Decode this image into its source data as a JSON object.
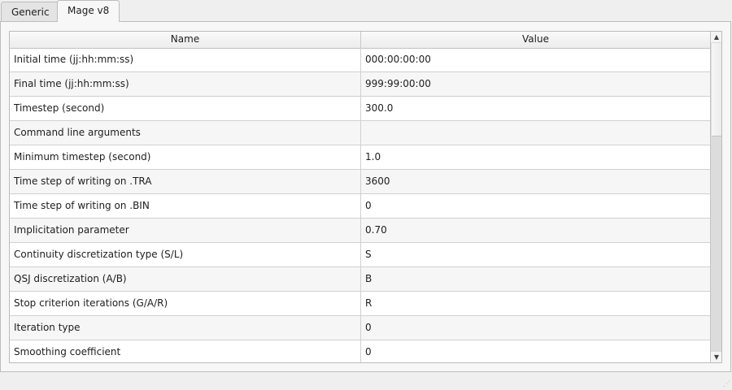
{
  "tabs": [
    {
      "label": "Generic",
      "active": false
    },
    {
      "label": "Mage v8",
      "active": true
    }
  ],
  "table": {
    "columns": [
      "Name",
      "Value"
    ],
    "rows": [
      [
        "Initial time (jj:hh:mm:ss)",
        "000:00:00:00"
      ],
      [
        "Final time (jj:hh:mm:ss)",
        "999:99:00:00"
      ],
      [
        "Timestep (second)",
        "300.0"
      ],
      [
        "Command line arguments",
        ""
      ],
      [
        "Minimum timestep (second)",
        "1.0"
      ],
      [
        "Time step of writing on .TRA",
        "3600"
      ],
      [
        "Time step of writing on .BIN",
        "0"
      ],
      [
        "Implicitation parameter",
        "0.70"
      ],
      [
        "Continuity discretization type (S/L)",
        "S"
      ],
      [
        "QSJ discretization (A/B)",
        "B"
      ],
      [
        "Stop criterion iterations (G/A/R)",
        "R"
      ],
      [
        "Iteration type",
        "0"
      ],
      [
        "Smoothing coefficient",
        "0"
      ]
    ]
  },
  "scrollbar": {
    "icons": [
      "arrow-up-icon",
      "arrow-down-icon"
    ]
  }
}
